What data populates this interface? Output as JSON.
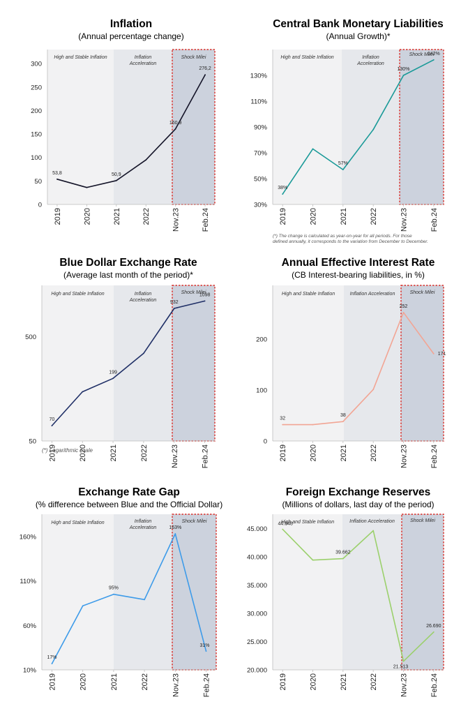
{
  "page": {
    "background": "#ffffff"
  },
  "region_labels": {
    "stable": "High and Stable Inflation",
    "acceleration": "Inflation Acceleration",
    "shock": "Shock Milei"
  },
  "chart_data": [
    {
      "type": "line",
      "title": "Inflation",
      "subtitle": "(Annual percentage change)",
      "categories": [
        "2019",
        "2020",
        "2021",
        "2022",
        "Nov.23",
        "Feb.24"
      ],
      "series": [
        {
          "values": [
            53.8,
            36.1,
            50.9,
            94.8,
            160.9,
            276.2
          ]
        }
      ],
      "data_labels": [
        "53,8",
        "",
        "50,9",
        "",
        "160,9",
        "276,2"
      ],
      "yticks": [
        {
          "v": 0,
          "label": "0"
        },
        {
          "v": 50,
          "label": "50"
        },
        {
          "v": 100,
          "label": "100"
        },
        {
          "v": 150,
          "label": "150"
        },
        {
          "v": 200,
          "label": "200"
        },
        {
          "v": 250,
          "label": "250"
        },
        {
          "v": 300,
          "label": "300"
        }
      ],
      "ylim": [
        0,
        330
      ],
      "scale": "linear",
      "line_color": "#141428",
      "split_regions": true,
      "footnote": ""
    },
    {
      "type": "line",
      "title": "Central Bank Monetary Liabilities",
      "subtitle": "(Annual Growth)*",
      "categories": [
        "2019",
        "2020",
        "2021",
        "2022",
        "Nov.23",
        "Feb.24"
      ],
      "series": [
        {
          "values": [
            38,
            73,
            57,
            88,
            130,
            142
          ]
        }
      ],
      "data_labels": [
        "38%",
        "",
        "57%",
        "",
        "130%",
        "142%"
      ],
      "yticks": [
        {
          "v": 30,
          "label": "30%"
        },
        {
          "v": 50,
          "label": "50%"
        },
        {
          "v": 70,
          "label": "70%"
        },
        {
          "v": 90,
          "label": "90%"
        },
        {
          "v": 110,
          "label": "110%"
        },
        {
          "v": 130,
          "label": "130%"
        }
      ],
      "ylim": [
        30,
        150
      ],
      "scale": "linear",
      "line_color": "#1a9a98",
      "split_regions": true,
      "footnote": "(*) The change is calculated as year-on-year for all periods. For those defined annually, it corresponds to the variation from December to December."
    },
    {
      "type": "line",
      "title": "Blue Dollar Exchange Rate",
      "subtitle": "(Average last month of the period)*",
      "categories": [
        "2019",
        "2020",
        "2021",
        "2022",
        "Nov.23",
        "Feb.24"
      ],
      "series": [
        {
          "values": [
            70,
            148,
            199,
            346,
            932,
            1098
          ]
        }
      ],
      "data_labels": [
        "70",
        "",
        "199",
        "",
        "932",
        "1098"
      ],
      "yticks": [
        {
          "v": 50,
          "label": "50"
        },
        {
          "v": 500,
          "label": "500"
        }
      ],
      "ylim": [
        50,
        1550
      ],
      "scale": "log",
      "line_color": "#1f2f66",
      "split_regions": true,
      "footnote": "(*) Logarithmic scale"
    },
    {
      "type": "line",
      "title": "Annual Effective Interest Rate",
      "subtitle": "(CB Interest-bearing liabilities, in %)",
      "categories": [
        "2019",
        "2020",
        "2021",
        "2022",
        "Nov.23",
        "Feb.24"
      ],
      "series": [
        {
          "values": [
            32,
            32,
            38,
            101,
            252,
            171
          ]
        }
      ],
      "data_labels": [
        "32",
        "",
        "38",
        "",
        "252",
        "171"
      ],
      "yticks": [
        {
          "v": 0,
          "label": "0"
        },
        {
          "v": 100,
          "label": "100"
        },
        {
          "v": 200,
          "label": "200"
        }
      ],
      "ylim": [
        0,
        305
      ],
      "scale": "linear",
      "line_color": "#f2a594",
      "split_regions": false,
      "footnote": ""
    },
    {
      "type": "line",
      "title": "Exchange Rate Gap",
      "subtitle": "(% difference between Blue and the Official Dollar)",
      "categories": [
        "2019",
        "2020",
        "2021",
        "2022",
        "Nov.23",
        "Feb.24"
      ],
      "series": [
        {
          "values": [
            17,
            82,
            95,
            89,
            163,
            31
          ]
        }
      ],
      "data_labels": [
        "17%",
        "",
        "95%",
        "",
        "163%",
        "31%"
      ],
      "yticks": [
        {
          "v": 10,
          "label": "10%"
        },
        {
          "v": 60,
          "label": "60%"
        },
        {
          "v": 110,
          "label": "110%"
        },
        {
          "v": 160,
          "label": "160%"
        }
      ],
      "ylim": [
        10,
        185
      ],
      "scale": "linear",
      "line_color": "#3d9be9",
      "split_regions": true,
      "footnote": ""
    },
    {
      "type": "line",
      "title": "Foreign Exchange Reserves",
      "subtitle": "(Millions of dollars, last day of the period)",
      "categories": [
        "2019",
        "2020",
        "2021",
        "2022",
        "Nov.23",
        "Feb.24"
      ],
      "series": [
        {
          "values": [
            44848,
            39400,
            39662,
            44600,
            21513,
            26690
          ]
        }
      ],
      "data_labels": [
        "44.848",
        "",
        "39.662",
        "",
        "21.513",
        "26.690"
      ],
      "yticks": [
        {
          "v": 20000,
          "label": "20.000"
        },
        {
          "v": 25000,
          "label": "25.000"
        },
        {
          "v": 30000,
          "label": "30.000"
        },
        {
          "v": 35000,
          "label": "35.000"
        },
        {
          "v": 40000,
          "label": "40.000"
        },
        {
          "v": 45000,
          "label": "45.000"
        }
      ],
      "ylim": [
        20000,
        47500
      ],
      "scale": "linear",
      "line_color": "#9bd06c",
      "split_regions": false,
      "footnote": ""
    }
  ]
}
